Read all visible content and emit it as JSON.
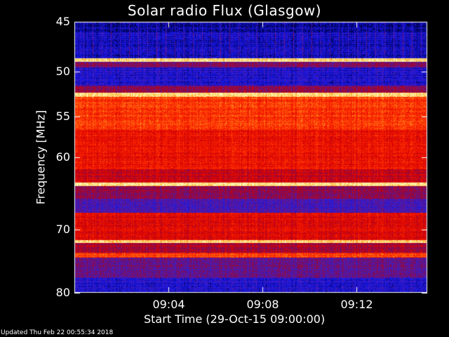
{
  "title": "Solar radio Flux (Glasgow)",
  "footer": "Updated Thu Feb 22 00:55:34 2018",
  "colors": {
    "background": "#000000",
    "text": "#ffffff"
  },
  "chart_data": {
    "type": "heatmap",
    "title": "Solar radio Flux (Glasgow)",
    "xlabel": "Start Time (29-Oct-15 09:00:00)",
    "ylabel": "Frequency [MHz]",
    "x_range": [
      "09:00",
      "09:15"
    ],
    "y_range": [
      45,
      80
    ],
    "x_ticks": [
      "09:04",
      "09:08",
      "09:12"
    ],
    "y_ticks": [
      "45",
      "50",
      "55",
      "60",
      "70",
      "80"
    ],
    "y_scale": "log",
    "colormap": "blue-red-yellow",
    "bands": [
      {
        "from": 45,
        "to": 46,
        "level": 0.08
      },
      {
        "from": 46,
        "to": 48.6,
        "level": 0.12
      },
      {
        "from": 48.6,
        "to": 49.0,
        "level": 0.97
      },
      {
        "from": 49.0,
        "to": 49.6,
        "level": 0.35
      },
      {
        "from": 49.6,
        "to": 51.5,
        "level": 0.15
      },
      {
        "from": 51.5,
        "to": 52.3,
        "level": 0.38
      },
      {
        "from": 52.3,
        "to": 52.8,
        "level": 0.95
      },
      {
        "from": 52.8,
        "to": 56.5,
        "level": 0.68
      },
      {
        "from": 56.5,
        "to": 61.5,
        "level": 0.6
      },
      {
        "from": 61.5,
        "to": 63.3,
        "level": 0.5
      },
      {
        "from": 63.3,
        "to": 63.8,
        "level": 0.96
      },
      {
        "from": 63.8,
        "to": 65.5,
        "level": 0.38
      },
      {
        "from": 65.5,
        "to": 67.5,
        "level": 0.25
      },
      {
        "from": 67.5,
        "to": 71.5,
        "level": 0.55
      },
      {
        "from": 71.5,
        "to": 72.0,
        "level": 0.95
      },
      {
        "from": 72.0,
        "to": 73.5,
        "level": 0.45
      },
      {
        "from": 73.5,
        "to": 74.3,
        "level": 0.7
      },
      {
        "from": 74.3,
        "to": 77.5,
        "level": 0.32
      },
      {
        "from": 77.5,
        "to": 80,
        "level": 0.15
      }
    ]
  }
}
